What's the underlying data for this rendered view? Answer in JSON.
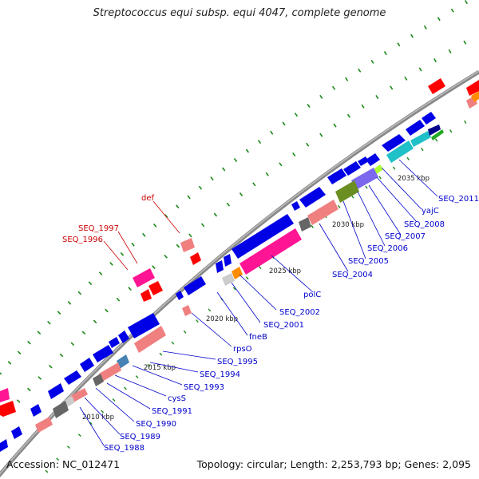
{
  "title": "Streptococcus equi subsp. equi 4047, complete genome",
  "footer": {
    "accession": "Accession: NC_012471",
    "topology": "Topology: circular; Length: 2,253,793 bp; Genes: 2,095"
  },
  "colors": {
    "backbone": "#8c8c8c",
    "tick": "#1a8a1a",
    "gene_forward": "#0000e6",
    "label_blue": "#0000cc",
    "label_red": "#cc0000",
    "pink": "#ff1493",
    "salmon": "#f08080",
    "red": "#ff0000",
    "cyan": "#20c0c8",
    "olive": "#6b8e23",
    "slate": "#7b68ee",
    "gray": "#666666",
    "orange": "#ff8c00",
    "steel": "#4682b4"
  },
  "scale": {
    "unit": "kbp",
    "ticks": [
      "2010 kbp",
      "2015 kbp",
      "2020 kbp",
      "2025 kbp",
      "2030 kbp",
      "2035 kbp"
    ]
  },
  "gene_labels_blue": [
    "SEQ_2011",
    "yajC",
    "SEQ_2008",
    "SEQ_2007",
    "SEQ_2006",
    "SEQ_2005",
    "SEQ_2004",
    "polC",
    "SEQ_2002",
    "SEQ_2001",
    "fneB",
    "rpsO",
    "SEQ_1995",
    "SEQ_1994",
    "SEQ_1993",
    "cysS",
    "SEQ_1991",
    "SEQ_1990",
    "SEQ_1989",
    "SEQ_1988"
  ],
  "gene_labels_red": [
    "def",
    "SEQ_1997",
    "SEQ_1996"
  ]
}
